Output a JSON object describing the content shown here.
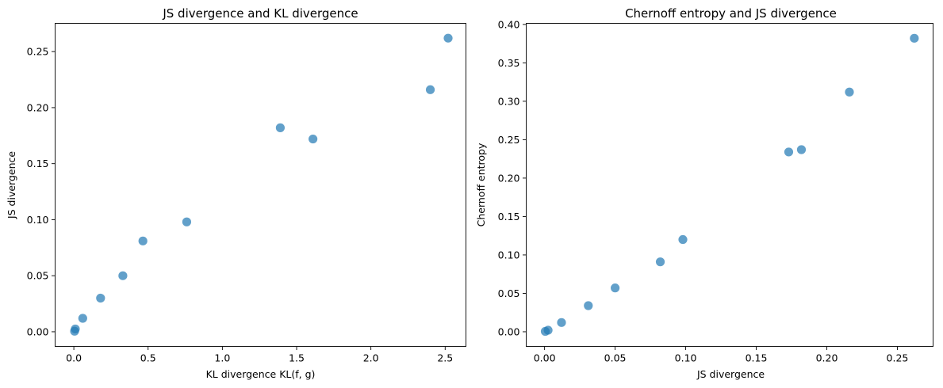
{
  "colors": {
    "marker": "#1f77b4",
    "axes": "#000000",
    "background": "#ffffff"
  },
  "chart_data": [
    {
      "type": "scatter",
      "title": "JS divergence and KL divergence",
      "xlabel": "KL divergence KL(f, g)",
      "ylabel": "JS divergence",
      "xlim": [
        -0.126,
        2.64
      ],
      "ylim": [
        -0.0131,
        0.2752
      ],
      "xticks": [
        0.0,
        0.5,
        1.0,
        1.5,
        2.0,
        2.5
      ],
      "xtick_labels": [
        "0.0",
        "0.5",
        "1.0",
        "1.5",
        "2.0",
        "2.5"
      ],
      "yticks": [
        0.0,
        0.05,
        0.1,
        0.15,
        0.2,
        0.25
      ],
      "ytick_labels": [
        "0.00",
        "0.05",
        "0.10",
        "0.15",
        "0.20",
        "0.25"
      ],
      "grid": false,
      "x": [
        0.005,
        0.01,
        0.06,
        0.18,
        0.33,
        0.465,
        0.76,
        1.39,
        1.61,
        2.4,
        2.52
      ],
      "y": [
        0.0005,
        0.0025,
        0.012,
        0.03,
        0.05,
        0.081,
        0.098,
        0.182,
        0.172,
        0.216,
        0.262
      ]
    },
    {
      "type": "scatter",
      "title": "Chernoff entropy and JS divergence",
      "xlabel": "JS divergence",
      "ylabel": "Chernoff entropy",
      "xlim": [
        -0.013,
        0.2753
      ],
      "ylim": [
        -0.0191,
        0.4014
      ],
      "xticks": [
        0.0,
        0.05,
        0.1,
        0.15,
        0.2,
        0.25
      ],
      "xtick_labels": [
        "0.00",
        "0.05",
        "0.10",
        "0.15",
        "0.20",
        "0.25"
      ],
      "yticks": [
        0.0,
        0.05,
        0.1,
        0.15,
        0.2,
        0.25,
        0.3,
        0.35,
        0.4
      ],
      "ytick_labels": [
        "0.00",
        "0.05",
        "0.10",
        "0.15",
        "0.20",
        "0.25",
        "0.30",
        "0.35",
        "0.40"
      ],
      "grid": false,
      "x": [
        0.0005,
        0.0025,
        0.012,
        0.031,
        0.05,
        0.082,
        0.098,
        0.173,
        0.182,
        0.216,
        0.262
      ],
      "y": [
        0.0005,
        0.002,
        0.012,
        0.034,
        0.057,
        0.091,
        0.12,
        0.234,
        0.237,
        0.312,
        0.382
      ]
    }
  ]
}
